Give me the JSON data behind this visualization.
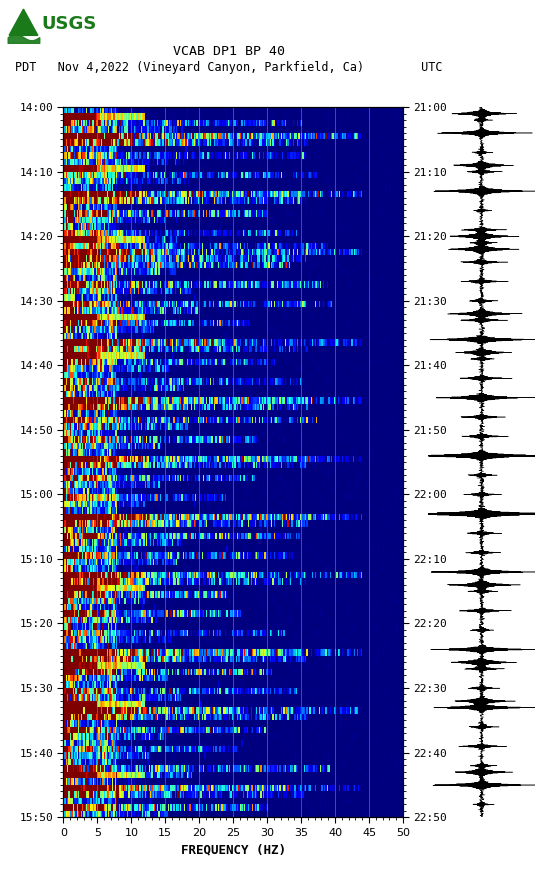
{
  "title_line1": "VCAB DP1 BP 40",
  "title_line2": "PDT   Nov 4,2022 (Vineyard Canyon, Parkfield, Ca)        UTC",
  "xlabel": "FREQUENCY (HZ)",
  "freq_min": 0,
  "freq_max": 50,
  "ytick_labels_left": [
    "14:00",
    "14:10",
    "14:20",
    "14:30",
    "14:40",
    "14:50",
    "15:00",
    "15:10",
    "15:20",
    "15:30",
    "15:40",
    "15:50"
  ],
  "ytick_labels_right": [
    "21:00",
    "21:10",
    "21:20",
    "21:30",
    "21:40",
    "21:50",
    "22:00",
    "22:10",
    "22:20",
    "22:30",
    "22:40",
    "22:50"
  ],
  "xtick_positions": [
    0,
    5,
    10,
    15,
    20,
    25,
    30,
    35,
    40,
    45,
    50
  ],
  "vertical_lines_x": [
    5,
    10,
    15,
    20,
    25,
    30,
    35,
    40,
    45
  ],
  "background_color": "#ffffff",
  "spectrogram_bg": "#00008B",
  "usgs_green": "#1a7a1a",
  "fig_width": 5.52,
  "fig_height": 8.93,
  "n_time": 110,
  "n_freq": 250,
  "event_rows": [
    2,
    4,
    7,
    10,
    13,
    16,
    19,
    21,
    24,
    27,
    30,
    33,
    36,
    39,
    42,
    45,
    48,
    51,
    54,
    57,
    60,
    63,
    66,
    69,
    72,
    75,
    78,
    81,
    84,
    87,
    90,
    93,
    96,
    99,
    102,
    105,
    108
  ],
  "dark_red_rows": [
    1,
    9,
    20,
    32,
    38,
    54,
    63,
    74,
    86,
    92,
    103
  ],
  "wide_band_rows": [
    4,
    13,
    22,
    36,
    45,
    54,
    63,
    72,
    84,
    93,
    105
  ]
}
